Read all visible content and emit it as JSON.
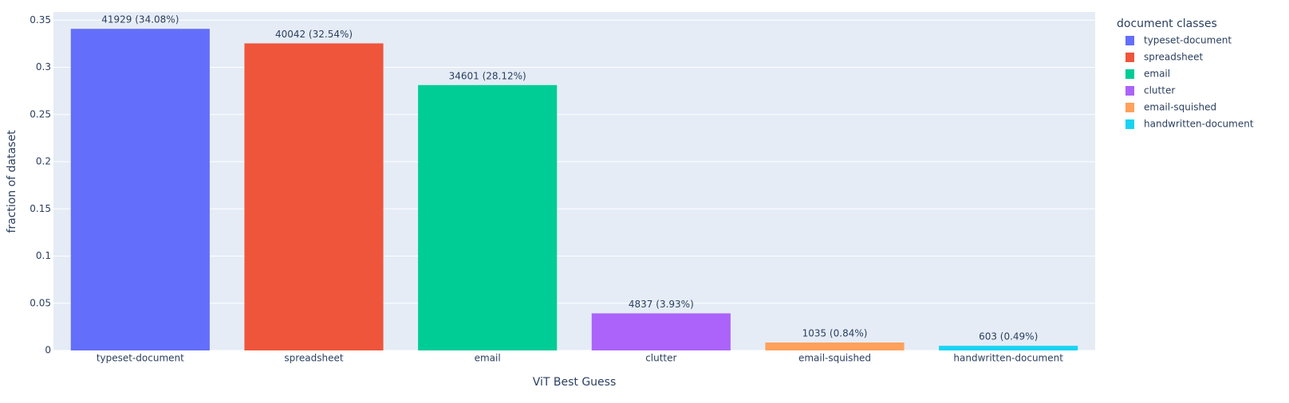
{
  "chart_data": {
    "type": "bar",
    "categories": [
      "typeset-document",
      "spreadsheet",
      "email",
      "clutter",
      "email-squished",
      "handwritten-document"
    ],
    "series": [
      {
        "name": "typeset-document",
        "color": "#636efa",
        "values": [
          0.3408,
          null,
          null,
          null,
          null,
          null
        ],
        "value_labels": [
          "41929 (34.08%)",
          null,
          null,
          null,
          null,
          null
        ]
      },
      {
        "name": "spreadsheet",
        "color": "#ef553b",
        "values": [
          null,
          0.3254,
          null,
          null,
          null,
          null
        ],
        "value_labels": [
          null,
          "40042 (32.54%)",
          null,
          null,
          null,
          null
        ]
      },
      {
        "name": "email",
        "color": "#00cc96",
        "values": [
          null,
          null,
          0.2812,
          null,
          null,
          null
        ],
        "value_labels": [
          null,
          null,
          "34601 (28.12%)",
          null,
          null,
          null
        ]
      },
      {
        "name": "clutter",
        "color": "#ab63fa",
        "values": [
          null,
          null,
          null,
          0.0393,
          null,
          null
        ],
        "value_labels": [
          null,
          null,
          null,
          "4837 (3.93%)",
          null,
          null
        ]
      },
      {
        "name": "email-squished",
        "color": "#ffa15a",
        "values": [
          null,
          null,
          null,
          null,
          0.0084,
          null
        ],
        "value_labels": [
          null,
          null,
          null,
          null,
          "1035 (0.84%)",
          null
        ]
      },
      {
        "name": "handwritten-document",
        "color": "#19d3f3",
        "values": [
          null,
          null,
          null,
          null,
          null,
          0.0049
        ],
        "value_labels": [
          null,
          null,
          null,
          null,
          null,
          "603 (0.49%)"
        ]
      }
    ],
    "x_label": "ViT Best Guess",
    "y_label": "fraction of dataset",
    "legend_title": "document classes",
    "ylim": [
      0,
      0.3587
    ],
    "yticks": [
      0,
      0.05,
      0.1,
      0.15,
      0.2,
      0.25,
      0.3,
      0.35
    ],
    "grid": true,
    "legend": "right"
  }
}
